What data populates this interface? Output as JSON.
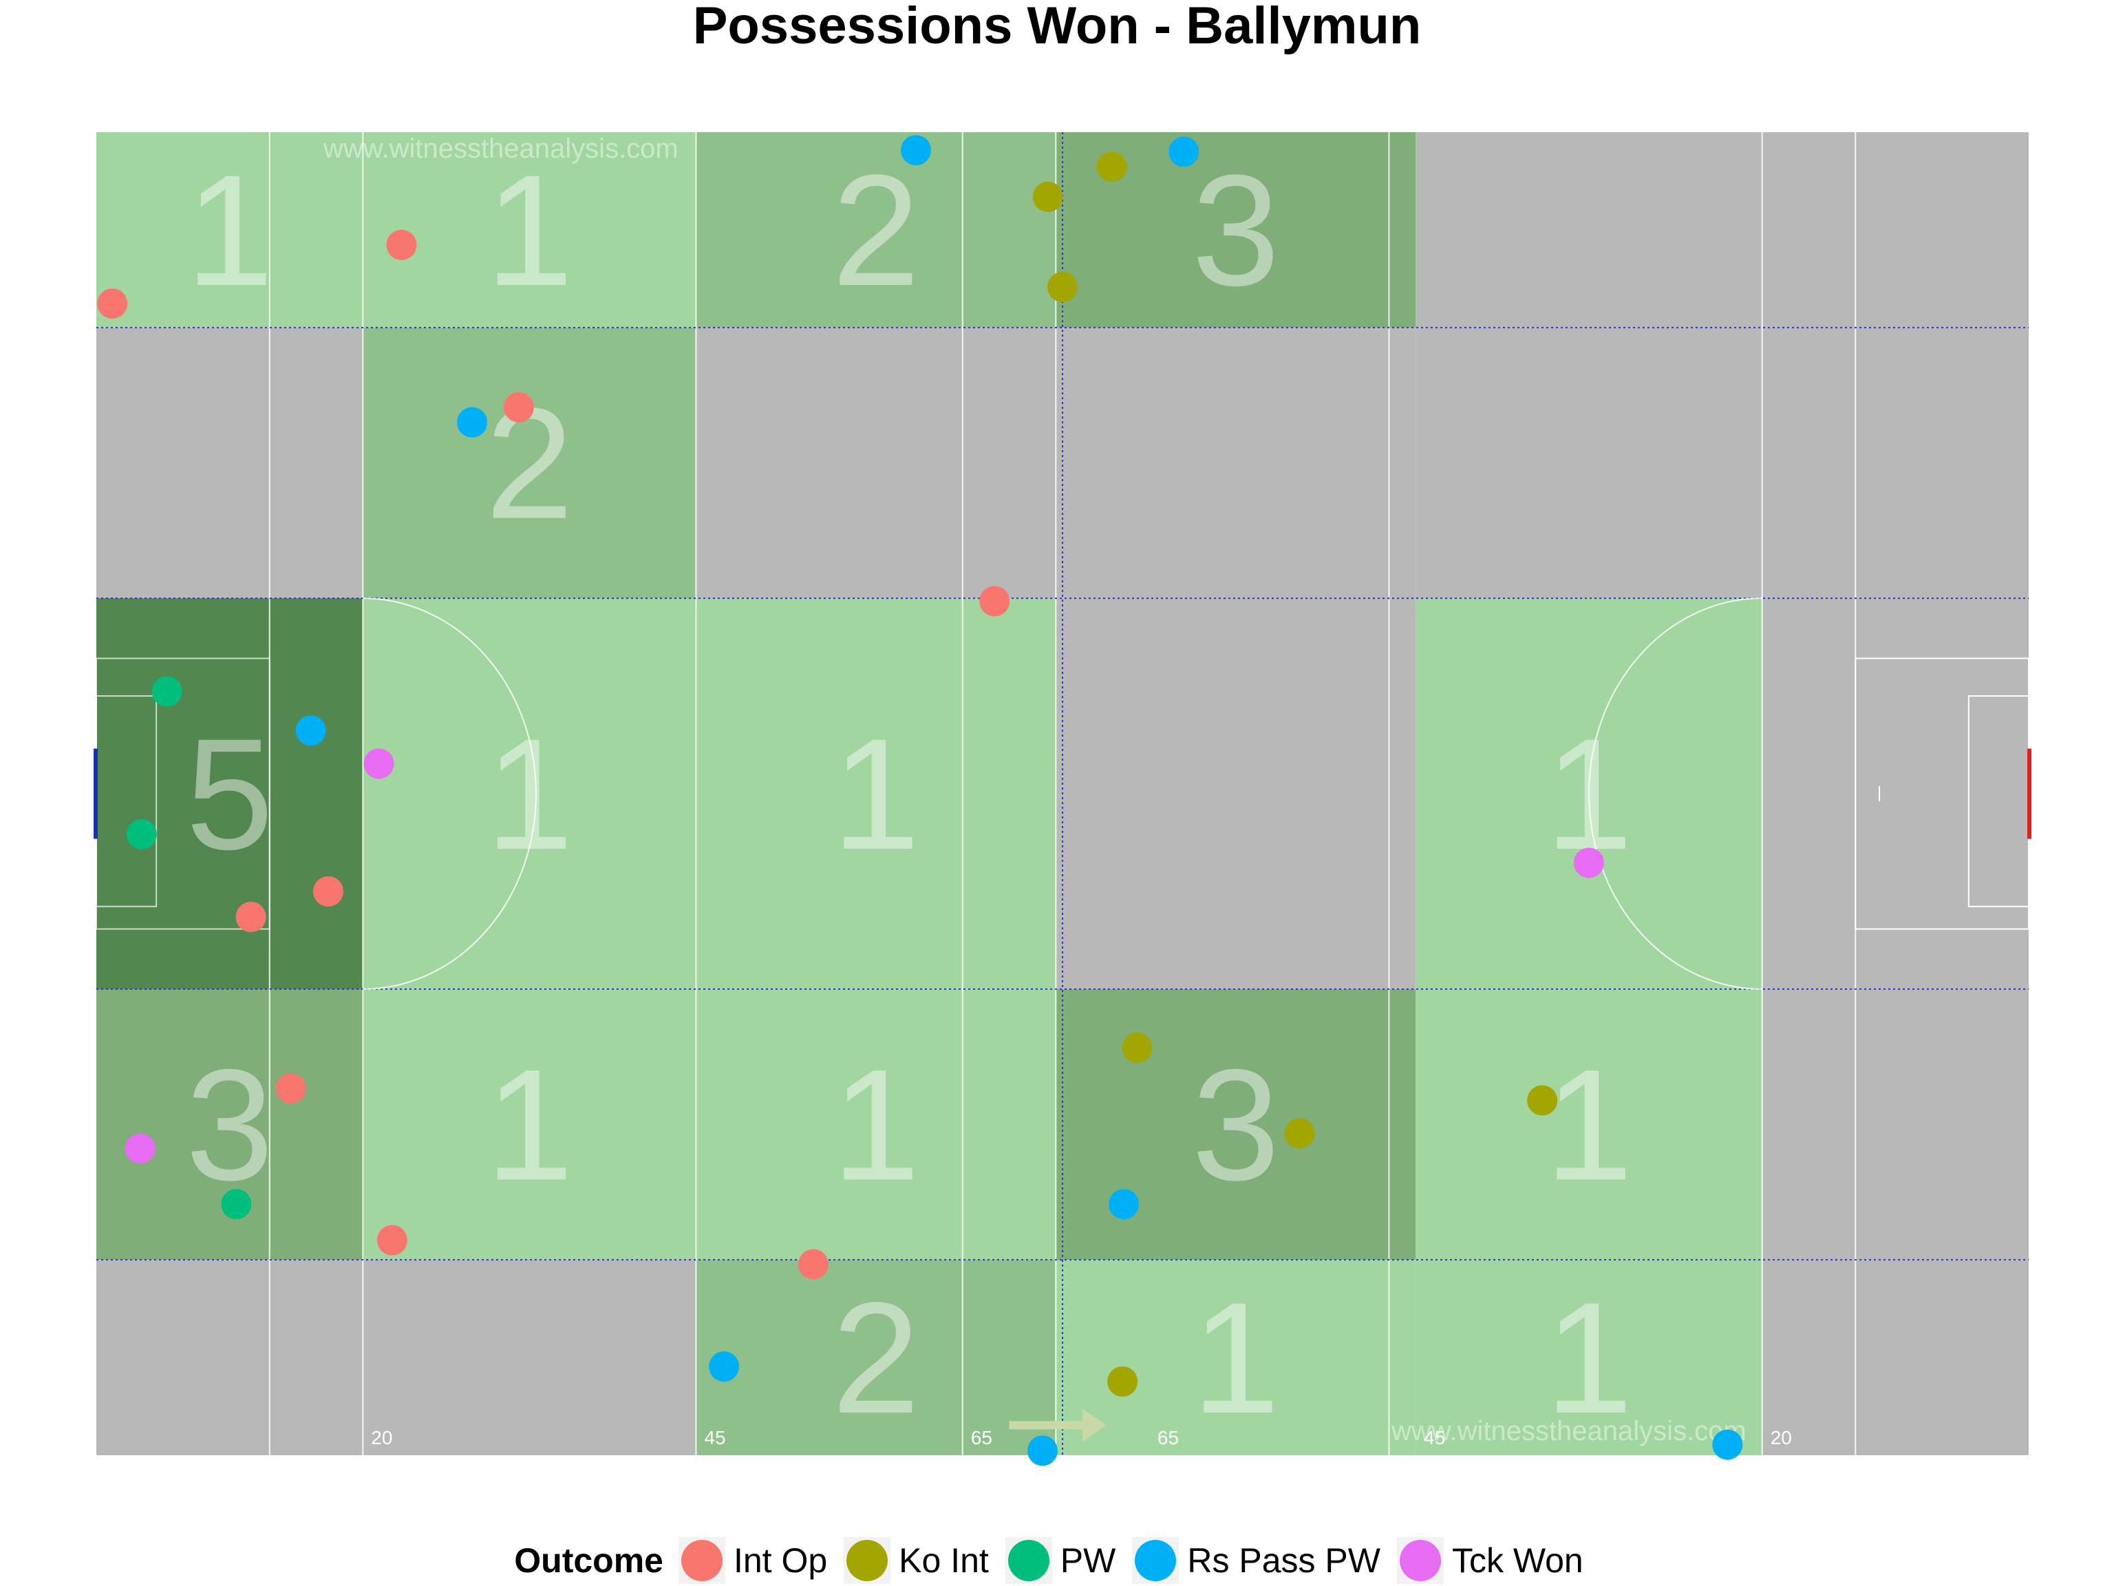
{
  "chart_data": {
    "type": "scatter",
    "title": "Possessions Won - Ballymun",
    "watermark": "www.witnesstheanalysis.com",
    "legend": {
      "title": "Outcome",
      "position": "bottom",
      "entries": [
        {
          "name": "Int Op",
          "color": "#F8766D"
        },
        {
          "name": "Ko Int",
          "color": "#A3A500"
        },
        {
          "name": "PW",
          "color": "#00BF7D"
        },
        {
          "name": "Rs Pass PW",
          "color": "#00B0F6"
        },
        {
          "name": "Tck Won",
          "color": "#E76BF3"
        }
      ]
    },
    "pitch_markings": [
      "20",
      "45",
      "65",
      "65",
      "45",
      "20"
    ],
    "xlim": [
      0,
      145
    ],
    "ylim": [
      0,
      88
    ],
    "x_lines": [
      13,
      20,
      45,
      65,
      72,
      97,
      125,
      132
    ],
    "zone_x_edges": [
      0,
      20,
      45,
      72,
      99,
      125,
      145
    ],
    "zone_y_edges": [
      0,
      13,
      31,
      57,
      75,
      88
    ],
    "zone_colors": {
      "1": "#a2d6a0",
      "2": "#8fc08b",
      "3": "#7fae79",
      "5": "#52874f",
      "0": "#b8b8b8"
    },
    "zones": [
      [
        1,
        1,
        2,
        3,
        0,
        0
      ],
      [
        0,
        2,
        0,
        0,
        0,
        0
      ],
      [
        5,
        1,
        1,
        0,
        1,
        0
      ],
      [
        3,
        1,
        1,
        3,
        1,
        0
      ],
      [
        0,
        0,
        2,
        1,
        1,
        0
      ]
    ],
    "points": [
      {
        "x": 1.2,
        "y": 11.4,
        "outcome": "Int Op"
      },
      {
        "x": 22.9,
        "y": 7.5,
        "outcome": "Int Op"
      },
      {
        "x": 31.7,
        "y": 18.3,
        "outcome": "Int Op"
      },
      {
        "x": 67.4,
        "y": 31.2,
        "outcome": "Int Op"
      },
      {
        "x": 17.4,
        "y": 50.5,
        "outcome": "Int Op"
      },
      {
        "x": 11.6,
        "y": 52.2,
        "outcome": "Int Op"
      },
      {
        "x": 14.6,
        "y": 63.6,
        "outcome": "Int Op"
      },
      {
        "x": 22.2,
        "y": 73.7,
        "outcome": "Int Op"
      },
      {
        "x": 53.8,
        "y": 75.3,
        "outcome": "Int Op"
      },
      {
        "x": 71.4,
        "y": 4.3,
        "outcome": "Ko Int"
      },
      {
        "x": 76.2,
        "y": 2.3,
        "outcome": "Ko Int"
      },
      {
        "x": 72.5,
        "y": 10.3,
        "outcome": "Ko Int"
      },
      {
        "x": 78.1,
        "y": 60.9,
        "outcome": "Ko Int"
      },
      {
        "x": 90.3,
        "y": 66.6,
        "outcome": "Ko Int"
      },
      {
        "x": 108.5,
        "y": 64.4,
        "outcome": "Ko Int"
      },
      {
        "x": 77.0,
        "y": 83.1,
        "outcome": "Ko Int"
      },
      {
        "x": 5.3,
        "y": 37.2,
        "outcome": "PW"
      },
      {
        "x": 3.4,
        "y": 46.7,
        "outcome": "PW"
      },
      {
        "x": 10.5,
        "y": 71.3,
        "outcome": "PW"
      },
      {
        "x": 61.5,
        "y": 1.2,
        "outcome": "Rs Pass PW"
      },
      {
        "x": 81.6,
        "y": 1.3,
        "outcome": "Rs Pass PW"
      },
      {
        "x": 28.2,
        "y": 19.3,
        "outcome": "Rs Pass PW"
      },
      {
        "x": 16.1,
        "y": 39.8,
        "outcome": "Rs Pass PW"
      },
      {
        "x": 77.1,
        "y": 71.3,
        "outcome": "Rs Pass PW"
      },
      {
        "x": 47.1,
        "y": 82.1,
        "outcome": "Rs Pass PW"
      },
      {
        "x": 71.0,
        "y": 87.7,
        "outcome": "Rs Pass PW"
      },
      {
        "x": 122.4,
        "y": 87.3,
        "outcome": "Rs Pass PW"
      },
      {
        "x": 21.2,
        "y": 42.0,
        "outcome": "Tck Won"
      },
      {
        "x": 112.0,
        "y": 48.6,
        "outcome": "Tck Won"
      },
      {
        "x": 3.3,
        "y": 67.6,
        "outcome": "Tck Won"
      }
    ]
  }
}
